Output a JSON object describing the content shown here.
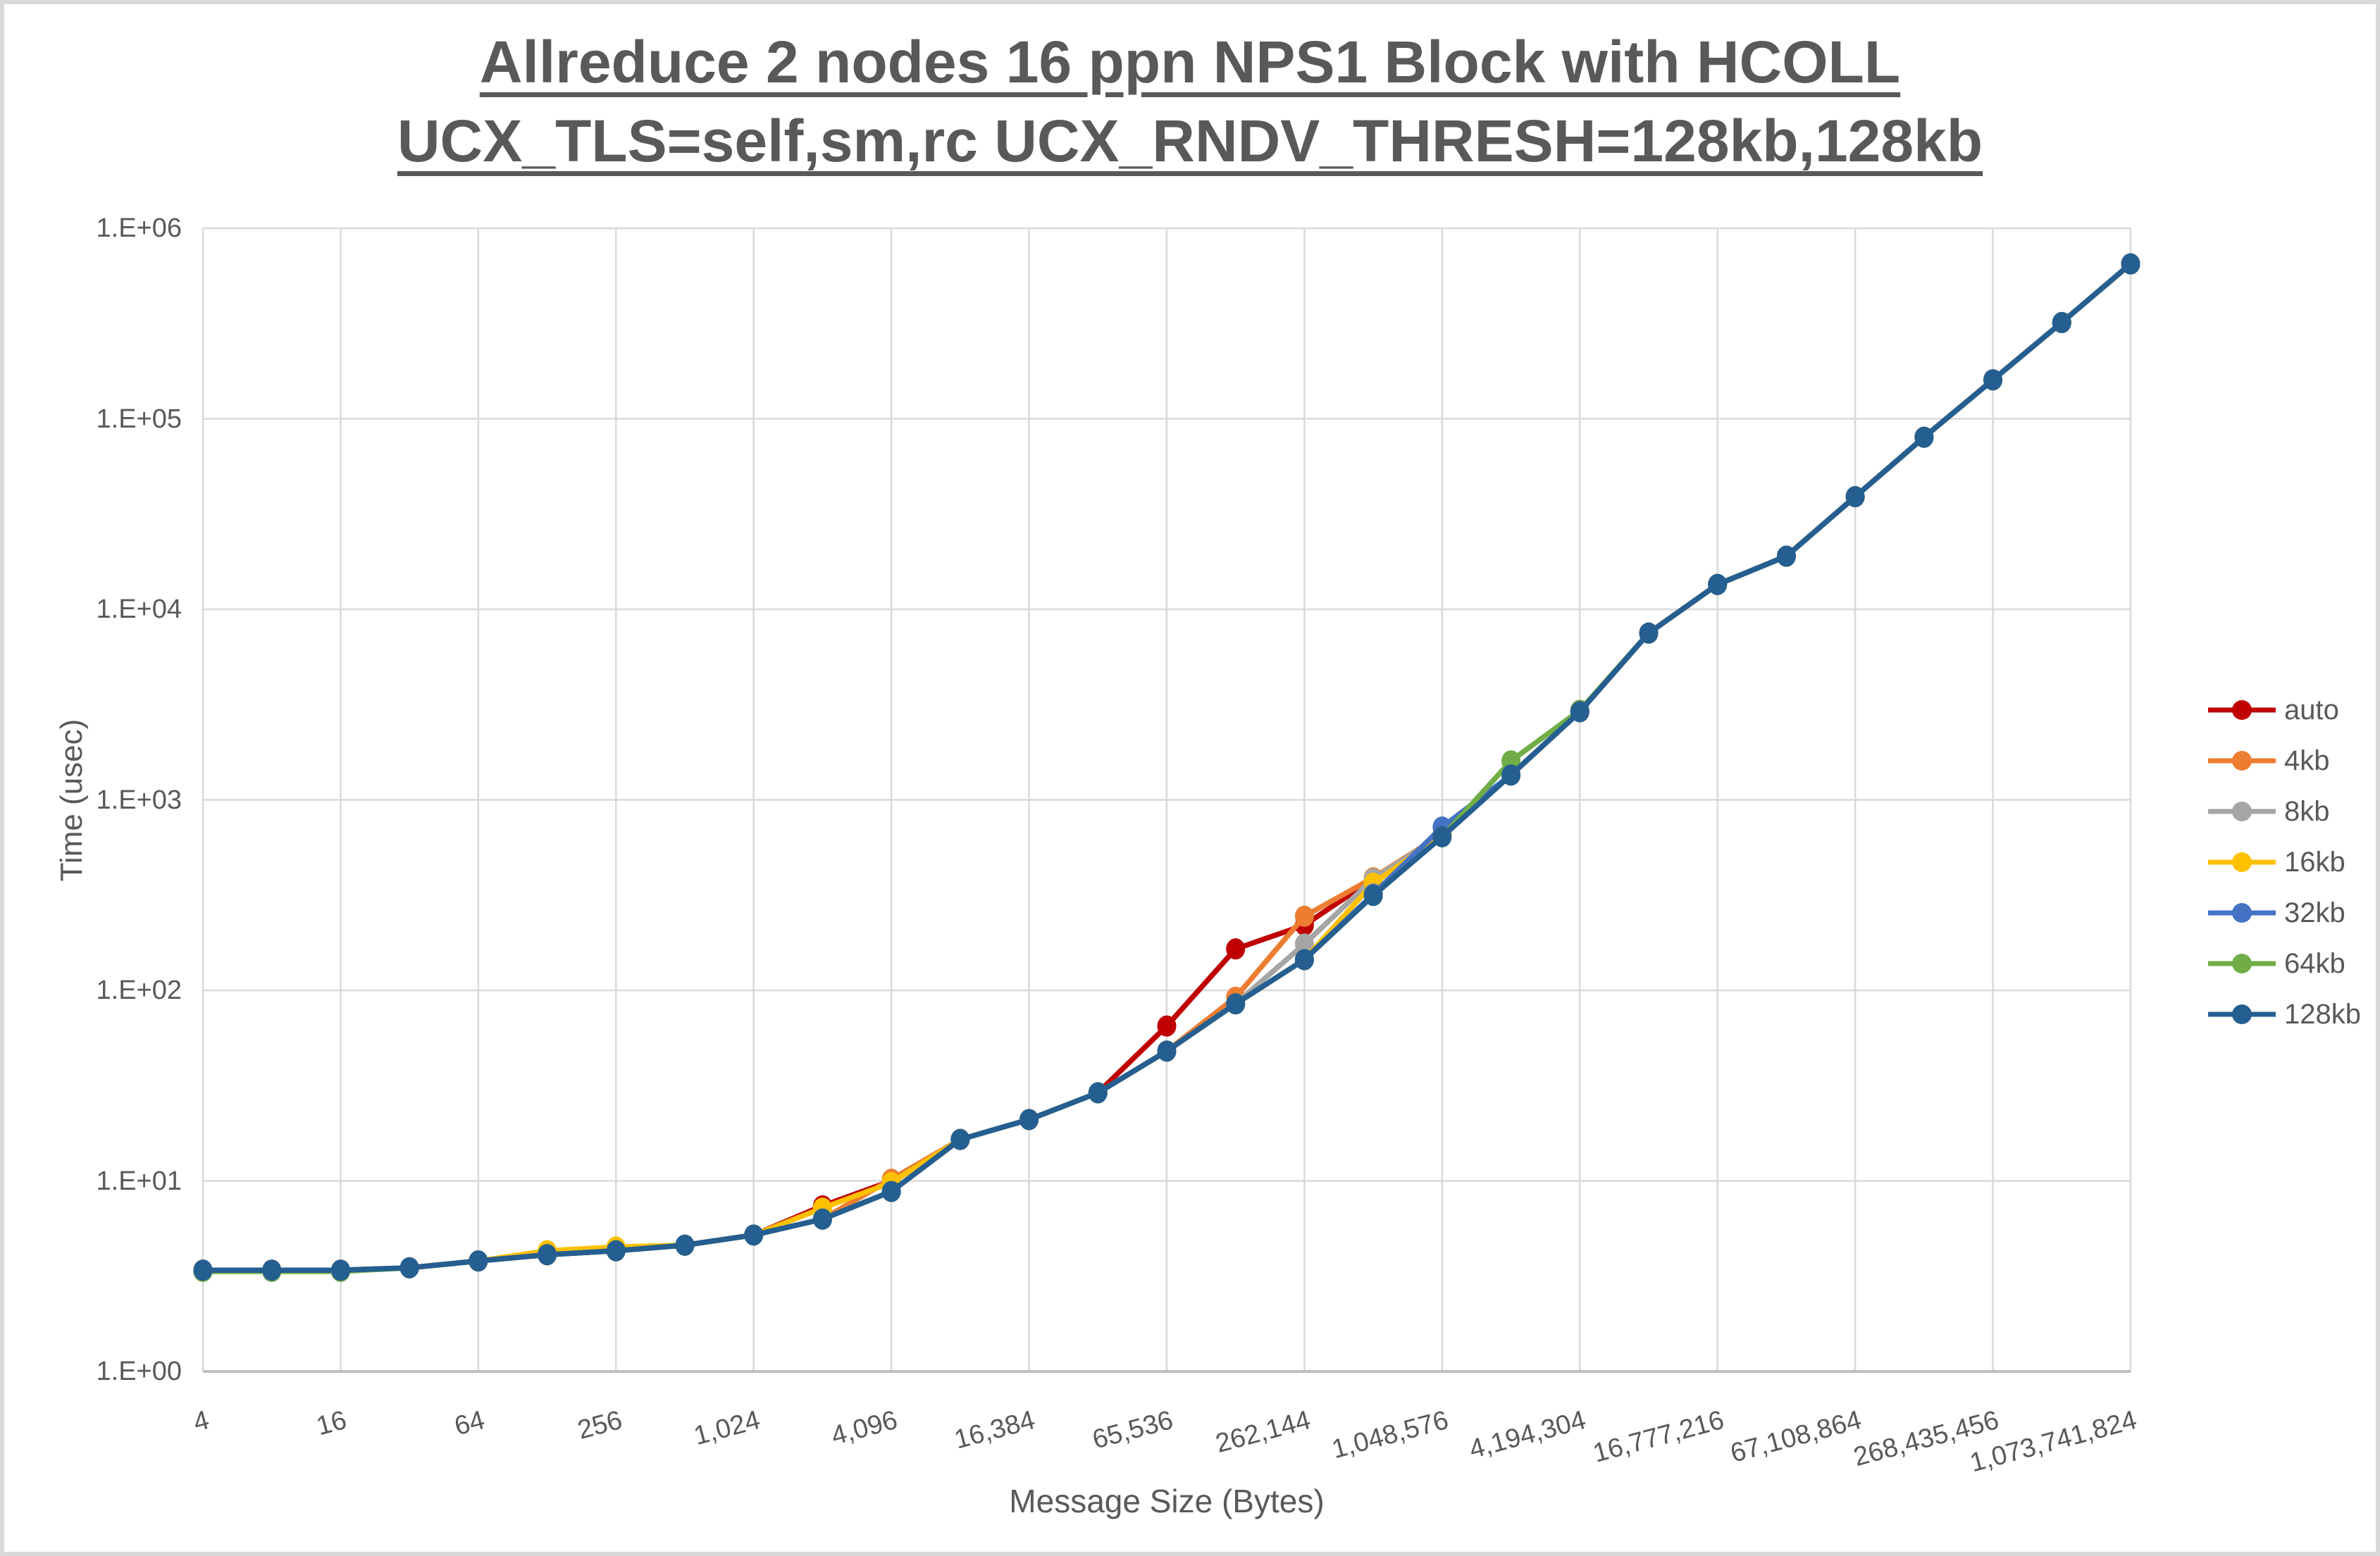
{
  "chart_data": {
    "type": "line",
    "title": "Allreduce 2 nodes 16 ppn NPS1 Block with HCOLL UCX_TLS=self,sm,rc UCX_RNDV_THRESH=128kb,128kb",
    "title_lines": [
      "Allreduce 2 nodes 16 ppn NPS1 Block with HCOLL",
      "UCX_TLS=self,sm,rc UCX_RNDV_THRESH=128kb,128kb"
    ],
    "xlabel": "Message Size (Bytes)",
    "ylabel": "Time (usec)",
    "x_scale": "log-category",
    "y_scale": "log",
    "ylim": [
      1,
      1000000
    ],
    "grid": true,
    "legend_position": "right",
    "x_categories": [
      4,
      8,
      16,
      32,
      64,
      128,
      256,
      512,
      1024,
      2048,
      4096,
      8192,
      16384,
      32768,
      65536,
      131072,
      262144,
      524288,
      1048576,
      2097152,
      4194304,
      8388608,
      16777216,
      33554432,
      67108864,
      134217728,
      268435456,
      536870912,
      1073741824
    ],
    "x_tick_labels": [
      "4",
      "16",
      "64",
      "256",
      "1,024",
      "4,096",
      "16,384",
      "65,536",
      "262,144",
      "1,048,576",
      "4,194,304",
      "16,777,216",
      "67,108,864",
      "268,435,456",
      "1,073,741,824"
    ],
    "y_tick_labels": [
      "1.E+00",
      "1.E+01",
      "1.E+02",
      "1.E+03",
      "1.E+04",
      "1.E+05",
      "1.E+06"
    ],
    "colors": {
      "gridline": "#d9d9d9",
      "axis_line": "#bfbfbf",
      "text": "#595959"
    },
    "series": [
      {
        "name": "auto",
        "color": "#C00000",
        "values": [
          3.4,
          3.4,
          3.4,
          3.5,
          3.8,
          4.1,
          4.3,
          4.6,
          5.2,
          7.4,
          10.0,
          16.5,
          21,
          29,
          65,
          165,
          220,
          385,
          650,
          1350,
          2900,
          7500,
          13500,
          19000,
          39000,
          80000,
          160000,
          320000,
          650000
        ]
      },
      {
        "name": "4kb",
        "color": "#ED7D31",
        "values": [
          3.4,
          3.4,
          3.4,
          3.5,
          3.8,
          4.1,
          4.3,
          4.6,
          5.2,
          6.3,
          10.2,
          16.5,
          21,
          29,
          48,
          92,
          245,
          390,
          660,
          1350,
          2900,
          7500,
          13500,
          19000,
          39000,
          80000,
          160000,
          320000,
          650000
        ]
      },
      {
        "name": "8kb",
        "color": "#A5A5A5",
        "values": [
          3.4,
          3.4,
          3.4,
          3.5,
          3.8,
          4.1,
          4.3,
          4.6,
          5.2,
          6.3,
          8.8,
          16.5,
          21,
          29,
          48,
          85,
          175,
          385,
          655,
          1350,
          2900,
          7500,
          13500,
          19000,
          39000,
          80000,
          160000,
          320000,
          650000
        ]
      },
      {
        "name": "16kb",
        "color": "#FFC000",
        "values": [
          3.4,
          3.4,
          3.4,
          3.5,
          3.8,
          4.3,
          4.5,
          4.6,
          5.2,
          7.2,
          9.8,
          16.5,
          21,
          29,
          48,
          85,
          145,
          365,
          650,
          1350,
          2900,
          7500,
          13500,
          19000,
          39000,
          80000,
          160000,
          320000,
          650000
        ]
      },
      {
        "name": "32kb",
        "color": "#4472C4",
        "values": [
          3.4,
          3.4,
          3.4,
          3.5,
          3.8,
          4.1,
          4.3,
          4.6,
          5.2,
          6.3,
          8.8,
          16.5,
          21,
          29,
          48,
          85,
          145,
          320,
          720,
          1350,
          2900,
          7500,
          13500,
          19000,
          39000,
          80000,
          160000,
          320000,
          650000
        ]
      },
      {
        "name": "64kb",
        "color": "#70AD47",
        "values": [
          3.35,
          3.35,
          3.35,
          3.5,
          3.8,
          4.1,
          4.3,
          4.6,
          5.2,
          6.3,
          8.8,
          16.5,
          21,
          29,
          48,
          85,
          145,
          315,
          640,
          1600,
          2950,
          7500,
          13500,
          19000,
          39000,
          80000,
          160000,
          320000,
          650000
        ]
      },
      {
        "name": "128kb",
        "color": "#255E91",
        "values": [
          3.4,
          3.4,
          3.4,
          3.5,
          3.8,
          4.1,
          4.3,
          4.6,
          5.2,
          6.3,
          8.8,
          16.5,
          21,
          29,
          48,
          85,
          145,
          315,
          640,
          1350,
          2900,
          7500,
          13500,
          19000,
          39000,
          80000,
          160000,
          320000,
          650000
        ]
      }
    ]
  }
}
